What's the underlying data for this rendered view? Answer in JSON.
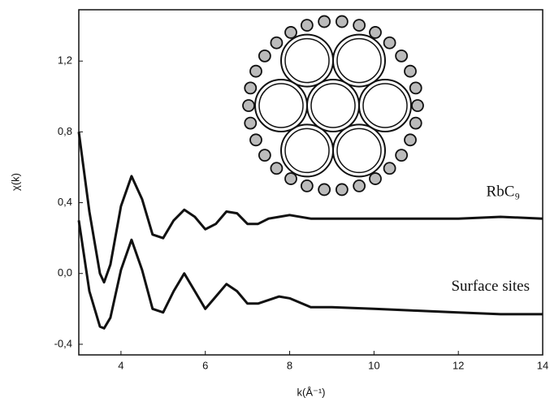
{
  "chart_data": {
    "type": "line",
    "x_label": "k(Å⁻¹)",
    "y_label": "χ(k)",
    "x": [
      3,
      3.25,
      3.5,
      3.6,
      3.75,
      4,
      4.25,
      4.5,
      4.75,
      5,
      5.25,
      5.5,
      5.75,
      6,
      6.25,
      6.5,
      6.75,
      7,
      7.25,
      7.5,
      7.75,
      8,
      8.5,
      9,
      10,
      11,
      12,
      13,
      14
    ],
    "series": [
      {
        "name": "RbC₉",
        "color": "#111111",
        "values": [
          0.8,
          0.35,
          0.0,
          -0.05,
          0.05,
          0.38,
          0.55,
          0.42,
          0.22,
          0.2,
          0.3,
          0.36,
          0.32,
          0.25,
          0.28,
          0.35,
          0.34,
          0.28,
          0.28,
          0.31,
          0.32,
          0.33,
          0.31,
          0.31,
          0.31,
          0.31,
          0.31,
          0.32,
          0.31
        ]
      },
      {
        "name": "Surface sites",
        "color": "#111111",
        "values": [
          0.3,
          -0.1,
          -0.3,
          -0.31,
          -0.25,
          0.02,
          0.19,
          0.02,
          -0.2,
          -0.22,
          -0.1,
          0.0,
          -0.1,
          -0.2,
          -0.13,
          -0.06,
          -0.1,
          -0.17,
          -0.17,
          -0.15,
          -0.13,
          -0.14,
          -0.19,
          -0.19,
          -0.2,
          -0.21,
          -0.22,
          -0.23,
          -0.23
        ]
      }
    ],
    "xlim": [
      3,
      14
    ],
    "xticks": [
      4,
      6,
      8,
      10,
      12,
      14
    ],
    "ylim": [
      -0.46,
      1.49
    ],
    "yticks": [
      {
        "value": -0.4,
        "label": "-0,4"
      },
      {
        "value": 0.0,
        "label": "0,0"
      },
      {
        "value": 0.4,
        "label": "0,4"
      },
      {
        "value": 0.8,
        "label": "0,8"
      },
      {
        "value": 1.2,
        "label": "1,2"
      }
    ]
  }
}
